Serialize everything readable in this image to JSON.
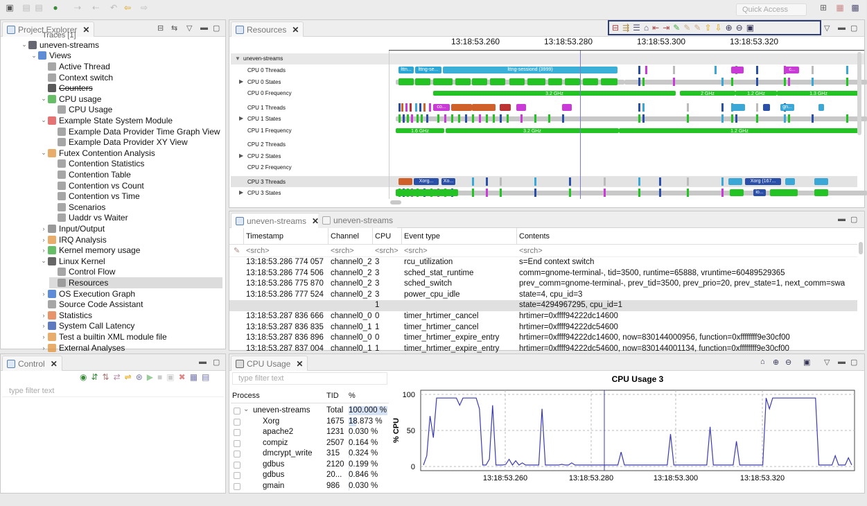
{
  "project_explorer": {
    "tab_label": "Project Explorer",
    "partial_top": "Traces [1]",
    "tree": [
      {
        "indent": 1,
        "arrow": "v",
        "label": "uneven-streams",
        "icon": "trace",
        "color": "#334"
      },
      {
        "indent": 2,
        "arrow": "v",
        "label": "Views",
        "icon": "views",
        "color": "#2a66c9"
      },
      {
        "indent": 3,
        "arrow": "",
        "label": "Active Thread",
        "icon": "table",
        "color": "#888"
      },
      {
        "indent": 3,
        "arrow": "",
        "label": "Context switch",
        "icon": "table",
        "color": "#888"
      },
      {
        "indent": 3,
        "arrow": "",
        "label": "Counters",
        "icon": "counters",
        "color": "#222",
        "strike": true
      },
      {
        "indent": 3,
        "arrow": "v",
        "label": "CPU usage",
        "icon": "cpu",
        "color": "#3a3"
      },
      {
        "indent": 4,
        "arrow": "",
        "label": "CPU Usage",
        "icon": "chip",
        "color": "#888"
      },
      {
        "indent": 3,
        "arrow": "v",
        "label": "Example State System Module",
        "icon": "module",
        "color": "#d44"
      },
      {
        "indent": 4,
        "arrow": "",
        "label": "Example Data Provider Time Graph View",
        "icon": "table",
        "color": "#888"
      },
      {
        "indent": 4,
        "arrow": "",
        "label": "Example Data Provider XY View",
        "icon": "table",
        "color": "#888"
      },
      {
        "indent": 3,
        "arrow": "v",
        "label": "Futex Contention Analysis",
        "icon": "folder",
        "color": "#e0903a"
      },
      {
        "indent": 4,
        "arrow": "",
        "label": "Contention Statistics",
        "icon": "table",
        "color": "#888"
      },
      {
        "indent": 4,
        "arrow": "",
        "label": "Contention Table",
        "icon": "table",
        "color": "#888"
      },
      {
        "indent": 4,
        "arrow": "",
        "label": "Contention vs Count",
        "icon": "chart",
        "color": "#888"
      },
      {
        "indent": 4,
        "arrow": "",
        "label": "Contention vs Time",
        "icon": "chart",
        "color": "#888"
      },
      {
        "indent": 4,
        "arrow": "",
        "label": "Scenarios",
        "icon": "table",
        "color": "#888"
      },
      {
        "indent": 4,
        "arrow": "",
        "label": "Uaddr vs Waiter",
        "icon": "table",
        "color": "#888"
      },
      {
        "indent": 3,
        "arrow": ">",
        "label": "Input/Output",
        "icon": "io",
        "color": "#777"
      },
      {
        "indent": 3,
        "arrow": ">",
        "label": "IRQ Analysis",
        "icon": "folder",
        "color": "#e0903a"
      },
      {
        "indent": 3,
        "arrow": ">",
        "label": "Kernel memory usage",
        "icon": "mem",
        "color": "#3a3"
      },
      {
        "indent": 3,
        "arrow": "v",
        "label": "Linux Kernel",
        "icon": "kernel",
        "color": "#333"
      },
      {
        "indent": 4,
        "arrow": "",
        "label": "Control Flow",
        "icon": "flow",
        "color": "#888"
      },
      {
        "indent": 4,
        "arrow": "",
        "label": "Resources",
        "icon": "res",
        "color": "#888",
        "selected": true
      },
      {
        "indent": 3,
        "arrow": ">",
        "label": "OS Execution Graph",
        "icon": "graph",
        "color": "#2a66c9"
      },
      {
        "indent": 3,
        "arrow": "",
        "label": "Source Code Assistant",
        "icon": "table",
        "color": "#888"
      },
      {
        "indent": 3,
        "arrow": ">",
        "label": "Statistics",
        "icon": "pie",
        "color": "#e0703a"
      },
      {
        "indent": 3,
        "arrow": ">",
        "label": "System Call Latency",
        "icon": "syscall",
        "color": "#2a4fa9"
      },
      {
        "indent": 3,
        "arrow": ">",
        "label": "Test a builtin XML module file",
        "icon": "folder",
        "color": "#e0903a"
      },
      {
        "indent": 3,
        "arrow": ">",
        "label": "External Analyses",
        "icon": "folder",
        "color": "#e0903a"
      }
    ]
  },
  "control": {
    "tab_label": "Control",
    "filter_placeholder": "type filter text"
  },
  "resources": {
    "tab_label": "Resources",
    "time_labels": [
      "13:18:53.260",
      "13:18:53.280",
      "13:18:53.300",
      "13:18:53.320"
    ],
    "group": "uneven-streams",
    "rows": [
      {
        "label": "CPU 0 Threads",
        "expand": false
      },
      {
        "label": "CPU 0 States",
        "expand": true
      },
      {
        "label": "CPU 0 Frequency",
        "expand": false
      },
      {
        "label": "CPU 1 Threads",
        "expand": false
      },
      {
        "label": "CPU 1 States",
        "expand": true
      },
      {
        "label": "CPU 1 Frequency",
        "expand": false
      },
      {
        "label": "CPU 2 Threads",
        "expand": false
      },
      {
        "label": "CPU 2 States",
        "expand": true
      },
      {
        "label": "CPU 2 Frequency",
        "expand": false
      },
      {
        "label": "CPU 3 Threads",
        "expand": false,
        "selected": true
      },
      {
        "label": "CPU 3 States",
        "expand": true
      }
    ],
    "bar_texts": {
      "lttng_sessiond": "lttng-sessiond (3999)",
      "lttn": "lttn...",
      "lttng_se": "lttng-se...",
      "ghz_32": "3.2 GHz",
      "ghz_2": "2 GHz",
      "ghz_12": "1.2 GHz",
      "ghz_13": "1.3 GHz",
      "ghz_16": "1.6 GHz",
      "co": "co...",
      "gn": "gn...",
      "xorg": "Xorg...",
      "xo": "Xo...",
      "xorg167": "Xorg (167...",
      "io": "io...",
      "c": "c..."
    }
  },
  "quick_access": "Quick Access",
  "events": {
    "tab1_label": "uneven-streams",
    "tab2_label": "uneven-streams",
    "columns": [
      "Timestamp",
      "Channel",
      "CPU",
      "Event type",
      "Contents"
    ],
    "search_placeholder": "<srch>",
    "rows": [
      {
        "ts": "13:18:53.286 774 057",
        "ch": "channel0_2",
        "cpu": "3",
        "type": "rcu_utilization",
        "contents": "s=End context switch"
      },
      {
        "ts": "13:18:53.286 774 506",
        "ch": "channel0_2",
        "cpu": "3",
        "type": "sched_stat_runtime",
        "contents": "comm=gnome-terminal-, tid=3500, runtime=65888, vruntime=60489529365"
      },
      {
        "ts": "13:18:53.286 775 870",
        "ch": "channel0_2",
        "cpu": "3",
        "type": "sched_switch",
        "contents": "prev_comm=gnome-terminal-, prev_tid=3500, prev_prio=20, prev_state=1, next_comm=swa"
      },
      {
        "ts": "13:18:53.286 777 524",
        "ch": "channel0_2",
        "cpu": "3",
        "type": "power_cpu_idle",
        "contents": "state=4, cpu_id=3"
      },
      {
        "ts": "",
        "ch": "",
        "cpu": "1",
        "type": "",
        "contents": "state=4294967295, cpu_id=1",
        "highlight": true
      },
      {
        "ts": "13:18:53.287 836 666",
        "ch": "channel0_0",
        "cpu": "0",
        "type": "timer_hrtimer_cancel",
        "contents": "hrtimer=0xffff94222dc14600"
      },
      {
        "ts": "13:18:53.287 836 835",
        "ch": "channel0_1",
        "cpu": "1",
        "type": "timer_hrtimer_cancel",
        "contents": "hrtimer=0xffff94222dc54600"
      },
      {
        "ts": "13:18:53.287 836 896",
        "ch": "channel0_0",
        "cpu": "0",
        "type": "timer_hrtimer_expire_entry",
        "contents": "hrtimer=0xffff94222dc14600, now=830144000956, function=0xffffffff9e30cf00"
      },
      {
        "ts": "13:18:53.287 837 004",
        "ch": "channel0_1",
        "cpu": "1",
        "type": "timer_hrtimer_expire_entry",
        "contents": "hrtimer=0xffff94222dc54600, now=830144001134, function=0xffffffff9e30cf00"
      }
    ]
  },
  "cpu_usage": {
    "tab_label": "CPU Usage",
    "filter_placeholder": "type filter text",
    "columns": [
      "Process",
      "TID",
      "%"
    ],
    "rows": [
      {
        "process": "uneven-streams",
        "tid": "Total",
        "pct": "100.000 %",
        "level": 0,
        "fill": 1.0
      },
      {
        "process": "Xorg",
        "tid": "1675",
        "pct": "18.873 %",
        "level": 1,
        "fill": 0.18873
      },
      {
        "process": "apache2",
        "tid": "1231",
        "pct": "0.030 %",
        "level": 1,
        "fill": 0.0003
      },
      {
        "process": "compiz",
        "tid": "2507",
        "pct": "0.164 %",
        "level": 1,
        "fill": 0.00164
      },
      {
        "process": "dmcrypt_write",
        "tid": "315",
        "pct": "0.324 %",
        "level": 1,
        "fill": 0.00324
      },
      {
        "process": "gdbus",
        "tid": "2120",
        "pct": "0.199 %",
        "level": 1,
        "fill": 0.00199
      },
      {
        "process": "gdbus",
        "tid": "20...",
        "pct": "0.846 %",
        "level": 1,
        "fill": 0.00846
      },
      {
        "process": "gmain",
        "tid": "986",
        "pct": "0.030 %",
        "level": 1,
        "fill": 0.0003
      }
    ]
  },
  "chart_data": {
    "type": "line",
    "title": "CPU Usage 3",
    "ylabel": "% CPU",
    "xlabel": "",
    "ylim": [
      0,
      100
    ],
    "yticks": [
      0,
      50,
      100
    ],
    "xticks": [
      "13:18:53.260",
      "13:18:53.280",
      "13:18:53.300",
      "13:18:53.320"
    ],
    "series": [
      {
        "values": [
          2,
          15,
          70,
          40,
          95,
          95,
          95,
          95,
          95,
          95,
          95,
          85,
          95,
          95,
          95,
          95,
          95,
          80,
          2,
          2,
          10,
          85,
          2,
          2,
          2,
          3,
          10,
          2,
          8,
          2,
          5,
          2,
          2,
          2,
          2,
          2,
          80,
          2,
          2,
          2,
          2,
          2,
          3,
          2,
          2,
          5,
          2,
          2,
          2,
          2,
          2,
          2,
          2,
          2,
          2,
          2,
          2,
          2,
          2,
          2,
          20,
          2,
          2,
          2,
          2,
          2,
          2,
          2,
          2,
          2,
          2,
          2,
          2,
          2,
          2,
          45,
          2,
          2,
          2,
          2,
          2,
          2,
          2,
          2,
          2,
          2,
          2,
          55,
          2,
          2,
          2,
          2,
          2,
          2,
          2,
          35,
          2,
          2,
          2,
          2,
          2,
          2,
          2,
          2,
          95,
          80,
          95,
          95,
          95,
          95,
          95,
          95,
          95,
          95,
          95,
          95,
          95,
          95,
          95,
          95,
          2,
          2,
          2,
          2,
          2,
          15,
          2,
          2,
          2,
          12,
          2
        ]
      }
    ],
    "color": "#3b3bb0"
  }
}
